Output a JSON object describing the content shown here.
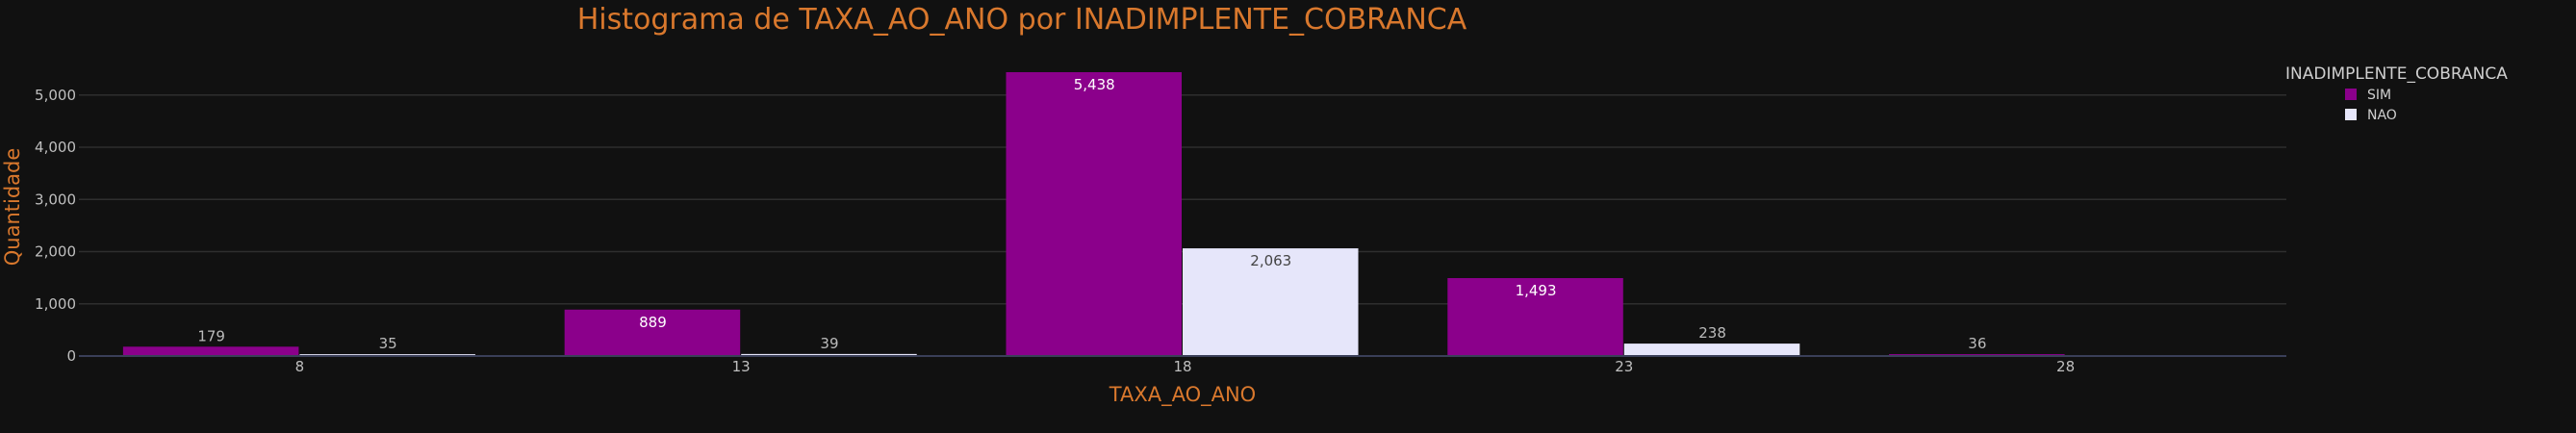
{
  "chart_data": {
    "type": "bar",
    "title": "Histograma de TAXA_AO_ANO por INADIMPLENTE_COBRANCA",
    "xlabel": "TAXA_AO_ANO",
    "ylabel": "Quantidade",
    "categories": [
      "8",
      "13",
      "18",
      "23",
      "28"
    ],
    "ylim": [
      0,
      5438
    ],
    "yticks": [
      0,
      1000,
      2000,
      3000,
      4000,
      5000
    ],
    "ytick_labels": [
      "0",
      "1,000",
      "2,000",
      "3,000",
      "4,000",
      "5,000"
    ],
    "grid": true,
    "legend": {
      "title": "INADIMPLENTE_COBRANCA",
      "placement": "top-right"
    },
    "series": [
      {
        "name": "SIM",
        "color": "#8b008b",
        "label_color": "#ffffff",
        "values": [
          179,
          889,
          5438,
          1493,
          36
        ],
        "labels": [
          "179",
          "889",
          "5,438",
          "1,493",
          "36"
        ]
      },
      {
        "name": "NAO",
        "color": "#e6e6fa",
        "label_color": "#444444",
        "values": [
          35,
          39,
          2063,
          238,
          null
        ],
        "labels": [
          "35",
          "39",
          "2,063",
          "238",
          ""
        ]
      }
    ]
  }
}
